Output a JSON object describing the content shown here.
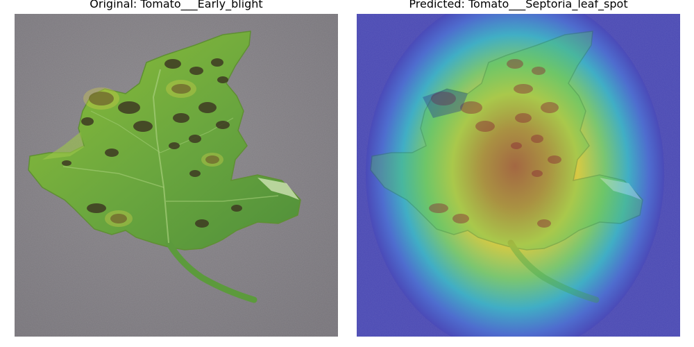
{
  "panels": [
    {
      "title": "Original: Tomato___Early_blight",
      "image": "tomato-leaf-photo"
    },
    {
      "title": "Predicted: Tomato___Septoria_leaf_spot",
      "image": "tomato-leaf-heatmap-overlay"
    }
  ],
  "colors": {
    "background": "#ffffff",
    "ground": "#7f7c80",
    "leaf": "#6faa3d",
    "heat_low": "#4a4ab8",
    "heat_high": "#e0322a"
  }
}
